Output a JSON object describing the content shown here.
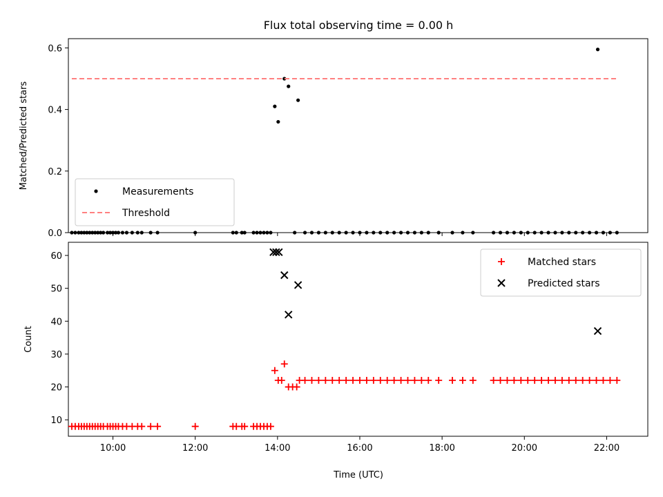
{
  "chart_data": [
    {
      "type": "scatter",
      "title": "Flux total observing time = 0.00 h",
      "xlabel": "",
      "ylabel": "Matched/Predicted stars",
      "x_range": [
        "08:55",
        "23:00"
      ],
      "ylim": [
        0,
        0.63
      ],
      "y_ticks": [
        "0.0",
        "0.2",
        "0.4",
        "0.6"
      ],
      "x_ticks": [
        "10:00",
        "12:00",
        "14:00",
        "16:00",
        "18:00",
        "20:00",
        "22:00"
      ],
      "legend_position": "lower-left",
      "grid": false,
      "series": [
        {
          "name": "Measurements",
          "marker": "dot",
          "color": "#000000",
          "points": [
            [
              "09:00",
              0
            ],
            [
              "09:05",
              0
            ],
            [
              "09:10",
              0
            ],
            [
              "09:14",
              0
            ],
            [
              "09:18",
              0
            ],
            [
              "09:22",
              0
            ],
            [
              "09:26",
              0
            ],
            [
              "09:30",
              0
            ],
            [
              "09:34",
              0
            ],
            [
              "09:38",
              0
            ],
            [
              "09:42",
              0
            ],
            [
              "09:46",
              0
            ],
            [
              "09:52",
              0
            ],
            [
              "09:56",
              0
            ],
            [
              "10:00",
              0
            ],
            [
              "10:04",
              0
            ],
            [
              "10:08",
              0
            ],
            [
              "10:14",
              0
            ],
            [
              "10:20",
              0
            ],
            [
              "10:28",
              0
            ],
            [
              "10:36",
              0
            ],
            [
              "10:42",
              0
            ],
            [
              "10:55",
              0
            ],
            [
              "11:05",
              0
            ],
            [
              "12:00",
              0
            ],
            [
              "12:55",
              0
            ],
            [
              "13:00",
              0
            ],
            [
              "13:08",
              0
            ],
            [
              "13:12",
              0
            ],
            [
              "13:25",
              0
            ],
            [
              "13:30",
              0
            ],
            [
              "13:35",
              0
            ],
            [
              "13:40",
              0
            ],
            [
              "13:45",
              0
            ],
            [
              "13:50",
              0
            ],
            [
              "13:56",
              0.41
            ],
            [
              "14:01",
              0.36
            ],
            [
              "14:10",
              0.5
            ],
            [
              "14:16",
              0.475
            ],
            [
              "14:30",
              0.43
            ],
            [
              "14:25",
              0
            ],
            [
              "14:40",
              0
            ],
            [
              "14:50",
              0
            ],
            [
              "15:00",
              0
            ],
            [
              "15:10",
              0
            ],
            [
              "15:20",
              0
            ],
            [
              "15:30",
              0
            ],
            [
              "15:40",
              0
            ],
            [
              "15:50",
              0
            ],
            [
              "16:00",
              0
            ],
            [
              "16:10",
              0
            ],
            [
              "16:20",
              0
            ],
            [
              "16:30",
              0
            ],
            [
              "16:40",
              0
            ],
            [
              "16:50",
              0
            ],
            [
              "17:00",
              0
            ],
            [
              "17:10",
              0
            ],
            [
              "17:20",
              0
            ],
            [
              "17:30",
              0
            ],
            [
              "17:40",
              0
            ],
            [
              "17:55",
              0
            ],
            [
              "18:15",
              0
            ],
            [
              "18:30",
              0
            ],
            [
              "18:45",
              0
            ],
            [
              "19:15",
              0
            ],
            [
              "19:25",
              0
            ],
            [
              "19:35",
              0
            ],
            [
              "19:45",
              0
            ],
            [
              "19:55",
              0
            ],
            [
              "20:05",
              0
            ],
            [
              "20:15",
              0
            ],
            [
              "20:25",
              0
            ],
            [
              "20:35",
              0
            ],
            [
              "20:45",
              0
            ],
            [
              "20:55",
              0
            ],
            [
              "21:05",
              0
            ],
            [
              "21:15",
              0
            ],
            [
              "21:25",
              0
            ],
            [
              "21:35",
              0
            ],
            [
              "21:45",
              0
            ],
            [
              "21:55",
              0
            ],
            [
              "22:05",
              0
            ],
            [
              "22:15",
              0
            ],
            [
              "21:47",
              0.595
            ]
          ]
        },
        {
          "name": "Threshold",
          "type": "line",
          "style": "dashed",
          "color": "#ff8080",
          "points": [
            [
              "09:00",
              0.5
            ],
            [
              "22:15",
              0.5
            ]
          ]
        }
      ]
    },
    {
      "type": "scatter",
      "title": "",
      "xlabel": "Time (UTC)",
      "ylabel": "Count",
      "x_range": [
        "08:55",
        "23:00"
      ],
      "ylim": [
        5,
        64
      ],
      "y_ticks": [
        "10",
        "20",
        "30",
        "40",
        "50",
        "60"
      ],
      "x_ticks": [
        "10:00",
        "12:00",
        "14:00",
        "16:00",
        "18:00",
        "20:00",
        "22:00"
      ],
      "legend_position": "upper-right",
      "grid": false,
      "series": [
        {
          "name": "Matched stars",
          "marker": "plus",
          "color": "#ff0000",
          "points": [
            [
              "09:00",
              8
            ],
            [
              "09:05",
              8
            ],
            [
              "09:10",
              8
            ],
            [
              "09:14",
              8
            ],
            [
              "09:18",
              8
            ],
            [
              "09:22",
              8
            ],
            [
              "09:26",
              8
            ],
            [
              "09:30",
              8
            ],
            [
              "09:34",
              8
            ],
            [
              "09:38",
              8
            ],
            [
              "09:42",
              8
            ],
            [
              "09:46",
              8
            ],
            [
              "09:52",
              8
            ],
            [
              "09:56",
              8
            ],
            [
              "10:00",
              8
            ],
            [
              "10:04",
              8
            ],
            [
              "10:08",
              8
            ],
            [
              "10:14",
              8
            ],
            [
              "10:20",
              8
            ],
            [
              "10:28",
              8
            ],
            [
              "10:36",
              8
            ],
            [
              "10:42",
              8
            ],
            [
              "10:55",
              8
            ],
            [
              "11:05",
              8
            ],
            [
              "12:00",
              8
            ],
            [
              "12:55",
              8
            ],
            [
              "13:00",
              8
            ],
            [
              "13:08",
              8
            ],
            [
              "13:12",
              8
            ],
            [
              "13:25",
              8
            ],
            [
              "13:30",
              8
            ],
            [
              "13:35",
              8
            ],
            [
              "13:40",
              8
            ],
            [
              "13:45",
              8
            ],
            [
              "13:50",
              8
            ],
            [
              "13:56",
              25
            ],
            [
              "14:01",
              22
            ],
            [
              "14:06",
              22
            ],
            [
              "14:10",
              27
            ],
            [
              "14:16",
              20
            ],
            [
              "14:22",
              20
            ],
            [
              "14:28",
              20
            ],
            [
              "14:32",
              22
            ],
            [
              "14:40",
              22
            ],
            [
              "14:50",
              22
            ],
            [
              "15:00",
              22
            ],
            [
              "15:10",
              22
            ],
            [
              "15:20",
              22
            ],
            [
              "15:30",
              22
            ],
            [
              "15:40",
              22
            ],
            [
              "15:50",
              22
            ],
            [
              "16:00",
              22
            ],
            [
              "16:10",
              22
            ],
            [
              "16:20",
              22
            ],
            [
              "16:30",
              22
            ],
            [
              "16:40",
              22
            ],
            [
              "16:50",
              22
            ],
            [
              "17:00",
              22
            ],
            [
              "17:10",
              22
            ],
            [
              "17:20",
              22
            ],
            [
              "17:30",
              22
            ],
            [
              "17:40",
              22
            ],
            [
              "17:55",
              22
            ],
            [
              "18:15",
              22
            ],
            [
              "18:30",
              22
            ],
            [
              "18:45",
              22
            ],
            [
              "19:15",
              22
            ],
            [
              "19:25",
              22
            ],
            [
              "19:35",
              22
            ],
            [
              "19:45",
              22
            ],
            [
              "19:55",
              22
            ],
            [
              "20:05",
              22
            ],
            [
              "20:15",
              22
            ],
            [
              "20:25",
              22
            ],
            [
              "20:35",
              22
            ],
            [
              "20:45",
              22
            ],
            [
              "20:55",
              22
            ],
            [
              "21:05",
              22
            ],
            [
              "21:15",
              22
            ],
            [
              "21:25",
              22
            ],
            [
              "21:35",
              22
            ],
            [
              "21:45",
              22
            ],
            [
              "21:55",
              22
            ],
            [
              "22:05",
              22
            ],
            [
              "22:15",
              22
            ]
          ]
        },
        {
          "name": "Predicted stars",
          "marker": "x",
          "color": "#000000",
          "points": [
            [
              "13:54",
              61
            ],
            [
              "13:58",
              61
            ],
            [
              "14:02",
              61
            ],
            [
              "14:10",
              54
            ],
            [
              "14:16",
              42
            ],
            [
              "14:30",
              51
            ],
            [
              "21:47",
              37
            ]
          ]
        }
      ]
    }
  ]
}
